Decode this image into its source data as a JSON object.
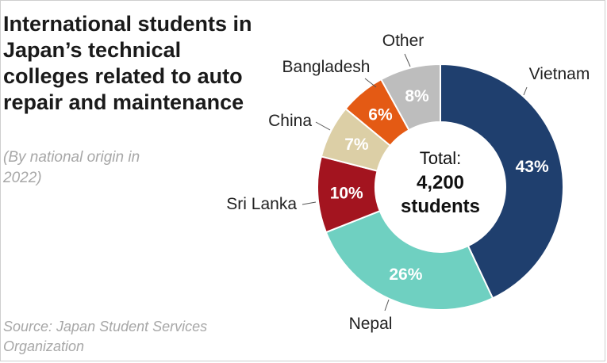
{
  "title": "International students in Japan’s technical colleges related to auto repair and maintenance",
  "subtitle": "(By national origin in 2022)",
  "source": "Source: Japan Student Services Organization",
  "chart_data": {
    "type": "pie",
    "variant": "donut",
    "center_label": [
      "Total:",
      "4,200",
      "students"
    ],
    "slices": [
      {
        "label": "Vietnam",
        "value": 43,
        "display": "43%",
        "color": "#1f3f6e",
        "pct_color": "#ffffff"
      },
      {
        "label": "Nepal",
        "value": 26,
        "display": "26%",
        "color": "#6fd0c1",
        "pct_color": "#ffffff"
      },
      {
        "label": "Sri Lanka",
        "value": 10,
        "display": "10%",
        "color": "#a3141f",
        "pct_color": "#ffffff"
      },
      {
        "label": "China",
        "value": 7,
        "display": "7%",
        "color": "#dccfa6",
        "pct_color": "#ffffff"
      },
      {
        "label": "Bangladesh",
        "value": 6,
        "display": "6%",
        "color": "#e45a14",
        "pct_color": "#ffffff"
      },
      {
        "label": "Other",
        "value": 8,
        "display": "8%",
        "color": "#bdbdbd",
        "pct_color": "#ffffff"
      }
    ]
  }
}
